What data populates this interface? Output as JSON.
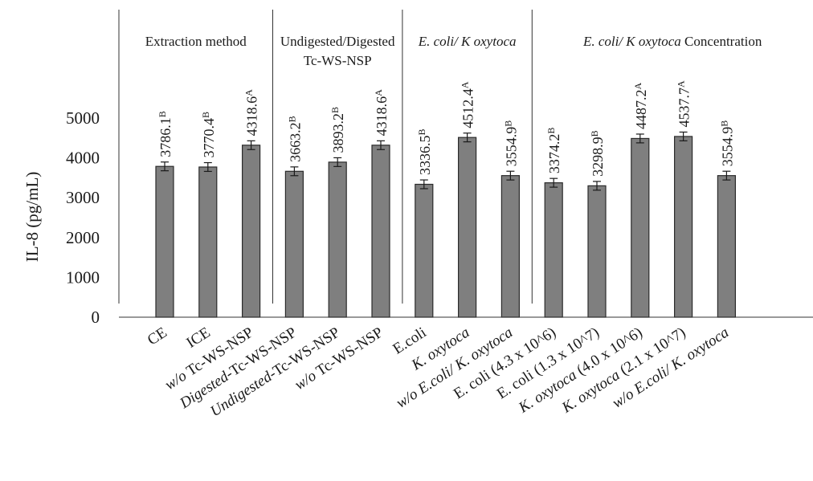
{
  "chart_data": {
    "type": "bar",
    "title": "",
    "xlabel": "",
    "ylabel": "IL-8 (pg/mL)",
    "ylim": [
      0,
      5000
    ],
    "yticks": [
      0,
      1000,
      2000,
      3000,
      4000,
      5000
    ],
    "grid": false,
    "legend": "none",
    "bar_color": "#7f7f7f",
    "groups": [
      {
        "title": [
          {
            "text": "Extraction method",
            "italic": false
          }
        ],
        "title2": "",
        "start": 0,
        "end": 2
      },
      {
        "title": [
          {
            "text": "Undigested/Digested",
            "italic": false
          }
        ],
        "title2": "Tc-WS-NSP",
        "start": 3,
        "end": 5
      },
      {
        "title": [
          {
            "text": "E. coli/ K oxytoca",
            "italic": true
          }
        ],
        "title2": "",
        "start": 6,
        "end": 8
      },
      {
        "title": [
          {
            "text": "E. coli/ K oxytoca",
            "italic": true
          },
          {
            "text": " Concentration",
            "italic": false
          }
        ],
        "title2": "",
        "start": 9,
        "end": 13
      }
    ],
    "categories": [
      [
        {
          "text": "CE",
          "italic": false
        }
      ],
      [
        {
          "text": "ICE",
          "italic": false
        }
      ],
      [
        {
          "text": "w/o",
          "italic": true
        },
        {
          "text": " Tc-WS-NSP",
          "italic": false
        }
      ],
      [
        {
          "text": "Digested",
          "italic": true
        },
        {
          "text": "-Tc-WS-NSP",
          "italic": false
        }
      ],
      [
        {
          "text": "Undigested",
          "italic": true
        },
        {
          "text": "-Tc-WS-NSP",
          "italic": false
        }
      ],
      [
        {
          "text": "w/o",
          "italic": true
        },
        {
          "text": " Tc-WS-NSP",
          "italic": false
        }
      ],
      [
        {
          "text": "E.coli",
          "italic": false
        }
      ],
      [
        {
          "text": "K. oxytoca",
          "italic": true
        }
      ],
      [
        {
          "text": "w/o E.coli/ K. oxytoca",
          "italic": true
        }
      ],
      [
        {
          "text": "E. coli (4.3 x 10^6)",
          "italic": false
        }
      ],
      [
        {
          "text": "E. coli (1.3 x 10^7)",
          "italic": false
        }
      ],
      [
        {
          "text": "K. oxytoca",
          "italic": true
        },
        {
          "text": " (4.0 x 10^6)",
          "italic": false
        }
      ],
      [
        {
          "text": "K. oxytoca",
          "italic": true
        },
        {
          "text": " (2.1 x 10^7)",
          "italic": false
        }
      ],
      [
        {
          "text": "w/o E.coli/ K. oxytoca",
          "italic": true
        }
      ]
    ],
    "series": [
      {
        "values": [
          3786.1,
          3770.4,
          4318.6,
          3663.2,
          3893.2,
          4318.6,
          3336.5,
          4512.4,
          3554.9,
          3374.2,
          3298.9,
          4487.2,
          4537.7,
          3554.9
        ],
        "labels": [
          "3786.1",
          "3770.4",
          "4318.6",
          "3663.2",
          "3893.2",
          "4318.6",
          "3336.5",
          "4512.4",
          "3554.9",
          "3374.2",
          "3298.9",
          "4487.2",
          "4537.7",
          "3554.9"
        ],
        "letters": [
          "B",
          "B",
          "A",
          "B",
          "B",
          "A",
          "B",
          "A",
          "B",
          "B",
          "B",
          "A",
          "A",
          "B"
        ],
        "errors": [
          110,
          110,
          110,
          110,
          110,
          110,
          110,
          110,
          110,
          110,
          110,
          110,
          110,
          110
        ]
      }
    ]
  }
}
